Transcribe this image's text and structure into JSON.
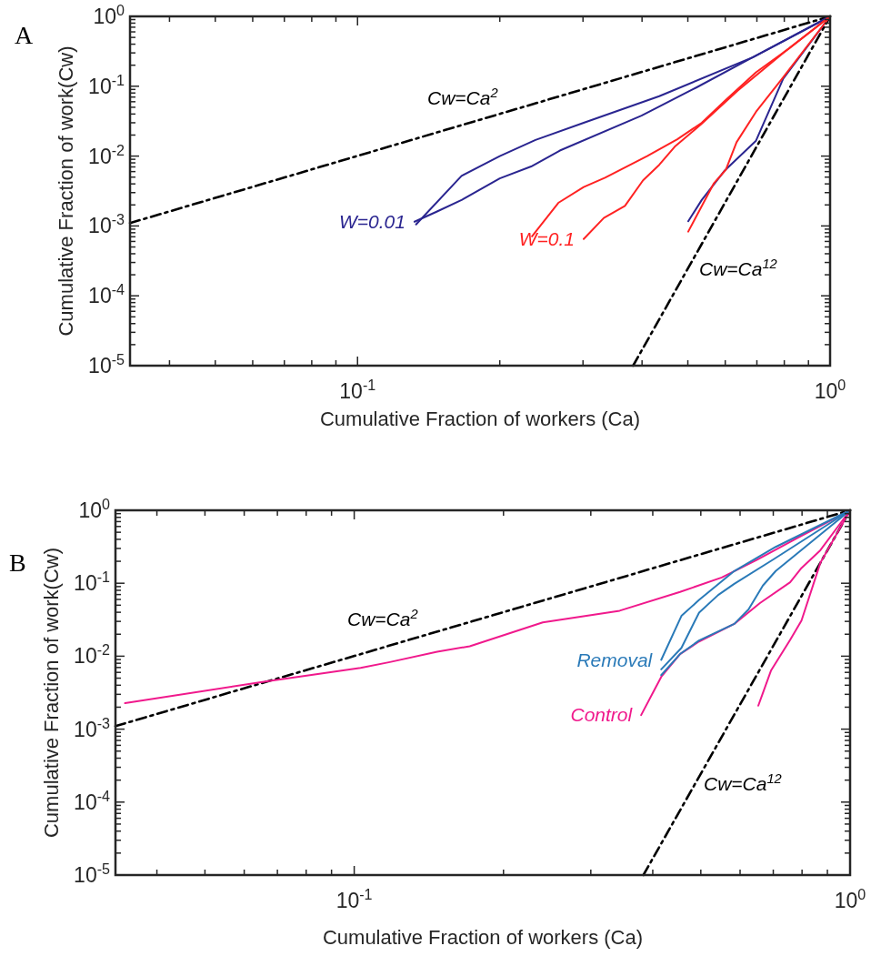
{
  "chart_data": [
    {
      "type": "line",
      "title": "A",
      "log": "xy",
      "xlabel": "Cumulative Fraction of workers (Ca)",
      "ylabel": "Cumulative Fraction of work(Cw)",
      "xlim": [
        0.033,
        1
      ],
      "ylim": [
        1e-05,
        1
      ],
      "xticks": [
        {
          "value": 0.04,
          "label": null
        },
        {
          "value": 0.05,
          "label": null
        },
        {
          "value": 0.06,
          "label": null
        },
        {
          "value": 0.07,
          "label": null
        },
        {
          "value": 0.08,
          "label": null
        },
        {
          "value": 0.09,
          "label": null
        },
        {
          "value": 0.1,
          "label": "10$^{-1}$"
        },
        {
          "value": 0.2,
          "label": null
        },
        {
          "value": 0.3,
          "label": null
        },
        {
          "value": 0.4,
          "label": null
        },
        {
          "value": 0.5,
          "label": null
        },
        {
          "value": 0.6,
          "label": null
        },
        {
          "value": 0.7,
          "label": null
        },
        {
          "value": 0.8,
          "label": null
        },
        {
          "value": 0.9,
          "label": null
        },
        {
          "value": 1,
          "label": "10$^{0}$"
        }
      ],
      "yticks": [
        {
          "value": 1e-05,
          "label": "10$^{-5}$"
        },
        {
          "value": 2e-05,
          "label": null
        },
        {
          "value": 3e-05,
          "label": null
        },
        {
          "value": 4e-05,
          "label": null
        },
        {
          "value": 5e-05,
          "label": null
        },
        {
          "value": 6e-05,
          "label": null
        },
        {
          "value": 7e-05,
          "label": null
        },
        {
          "value": 8e-05,
          "label": null
        },
        {
          "value": 9e-05,
          "label": null
        },
        {
          "value": 0.0001,
          "label": "10$^{-4}$"
        },
        {
          "value": 0.0002,
          "label": null
        },
        {
          "value": 0.0003,
          "label": null
        },
        {
          "value": 0.0004,
          "label": null
        },
        {
          "value": 0.0005,
          "label": null
        },
        {
          "value": 0.0006,
          "label": null
        },
        {
          "value": 0.0007,
          "label": null
        },
        {
          "value": 0.0008,
          "label": null
        },
        {
          "value": 0.0009,
          "label": null
        },
        {
          "value": 0.001,
          "label": "10$^{-3}$"
        },
        {
          "value": 0.002,
          "label": null
        },
        {
          "value": 0.003,
          "label": null
        },
        {
          "value": 0.004,
          "label": null
        },
        {
          "value": 0.005,
          "label": null
        },
        {
          "value": 0.006,
          "label": null
        },
        {
          "value": 0.007,
          "label": null
        },
        {
          "value": 0.008,
          "label": null
        },
        {
          "value": 0.009,
          "label": null
        },
        {
          "value": 0.01,
          "label": "10$^{-2}$"
        },
        {
          "value": 0.02,
          "label": null
        },
        {
          "value": 0.03,
          "label": null
        },
        {
          "value": 0.04,
          "label": null
        },
        {
          "value": 0.05,
          "label": null
        },
        {
          "value": 0.06,
          "label": null
        },
        {
          "value": 0.07,
          "label": null
        },
        {
          "value": 0.08,
          "label": null
        },
        {
          "value": 0.09,
          "label": null
        },
        {
          "value": 0.1,
          "label": "10$^{-1}$"
        },
        {
          "value": 0.2,
          "label": null
        },
        {
          "value": 0.3,
          "label": null
        },
        {
          "value": 0.4,
          "label": null
        },
        {
          "value": 0.5,
          "label": null
        },
        {
          "value": 0.6,
          "label": null
        },
        {
          "value": 0.7,
          "label": null
        },
        {
          "value": 0.8,
          "label": null
        },
        {
          "value": 0.9,
          "label": null
        },
        {
          "value": 1,
          "label": "10$^{0}$"
        }
      ],
      "series": [
        {
          "color": "#000000",
          "line_style": "dashed",
          "x": [
            0.033,
            1
          ],
          "values": [
            0.0011,
            1
          ]
        },
        {
          "color": "#000000",
          "line_style": "dashed",
          "x": [
            0.383,
            1
          ],
          "values": [
            1e-05,
            1
          ]
        },
        {
          "color": "#2a2590",
          "x": [
            0.133,
            0.166,
            0.2,
            0.238,
            0.301,
            0.435,
            0.687,
            1
          ],
          "values": [
            0.00105,
            0.0052,
            0.01,
            0.017,
            0.03,
            0.072,
            0.26,
            1
          ]
        },
        {
          "name": "W=0.01",
          "color": "#2a2590",
          "x": [
            0.132,
            0.147,
            0.166,
            0.2,
            0.233,
            0.268,
            0.399,
            0.52,
            0.667,
            1
          ],
          "values": [
            0.00115,
            0.0016,
            0.00235,
            0.0048,
            0.0071,
            0.012,
            0.038,
            0.095,
            0.235,
            1
          ]
        },
        {
          "color": "#2a2590",
          "x": [
            0.501,
            0.535,
            0.597,
            0.697,
            0.796,
            1
          ],
          "values": [
            0.00117,
            0.00235,
            0.0061,
            0.0166,
            0.129,
            1
          ]
        },
        {
          "color": "#ff2222",
          "x": [
            0.234,
            0.266,
            0.301,
            0.334,
            0.41,
            0.475,
            0.535,
            0.602,
            0.697,
            0.82,
            1
          ],
          "values": [
            0.00071,
            0.00214,
            0.0036,
            0.0049,
            0.01,
            0.0174,
            0.03,
            0.064,
            0.158,
            0.35,
            1
          ]
        },
        {
          "name": "W=0.1",
          "color": "#ff2222",
          "x": [
            0.301,
            0.332,
            0.368,
            0.402,
            0.435,
            0.469,
            0.535,
            0.638,
            0.796,
            1
          ],
          "values": [
            0.00065,
            0.0013,
            0.00194,
            0.0045,
            0.0075,
            0.0136,
            0.029,
            0.087,
            0.3,
            1
          ]
        },
        {
          "color": "#ff2222",
          "x": [
            0.501,
            0.568,
            0.602,
            0.634,
            0.697,
            0.796,
            1
          ],
          "values": [
            0.00083,
            0.0041,
            0.0064,
            0.0158,
            0.043,
            0.135,
            1
          ]
        }
      ],
      "annotations": [
        "Cw=Ca$^{2}$",
        "Cw=Ca$^{12}$"
      ]
    },
    {
      "type": "line",
      "title": "B",
      "log": "xy",
      "xlabel": "Cumulative Fraction of workers (Ca)",
      "ylabel": "Cumulative Fraction of work(Cw)",
      "xlim": [
        0.033,
        1
      ],
      "ylim": [
        1e-05,
        1
      ],
      "xticks": [
        {
          "value": 0.04,
          "label": null
        },
        {
          "value": 0.05,
          "label": null
        },
        {
          "value": 0.06,
          "label": null
        },
        {
          "value": 0.07,
          "label": null
        },
        {
          "value": 0.08,
          "label": null
        },
        {
          "value": 0.09,
          "label": null
        },
        {
          "value": 0.1,
          "label": "10$^{-1}$"
        },
        {
          "value": 0.2,
          "label": null
        },
        {
          "value": 0.3,
          "label": null
        },
        {
          "value": 0.4,
          "label": null
        },
        {
          "value": 0.5,
          "label": null
        },
        {
          "value": 0.6,
          "label": null
        },
        {
          "value": 0.7,
          "label": null
        },
        {
          "value": 0.8,
          "label": null
        },
        {
          "value": 0.9,
          "label": null
        },
        {
          "value": 1,
          "label": "10$^{0}$"
        }
      ],
      "yticks": [
        {
          "value": 1e-05,
          "label": "10$^{-5}$"
        },
        {
          "value": 2e-05,
          "label": null
        },
        {
          "value": 3e-05,
          "label": null
        },
        {
          "value": 4e-05,
          "label": null
        },
        {
          "value": 5e-05,
          "label": null
        },
        {
          "value": 6e-05,
          "label": null
        },
        {
          "value": 7e-05,
          "label": null
        },
        {
          "value": 8e-05,
          "label": null
        },
        {
          "value": 9e-05,
          "label": null
        },
        {
          "value": 0.0001,
          "label": "10$^{-4}$"
        },
        {
          "value": 0.0002,
          "label": null
        },
        {
          "value": 0.0003,
          "label": null
        },
        {
          "value": 0.0004,
          "label": null
        },
        {
          "value": 0.0005,
          "label": null
        },
        {
          "value": 0.0006,
          "label": null
        },
        {
          "value": 0.0007,
          "label": null
        },
        {
          "value": 0.0008,
          "label": null
        },
        {
          "value": 0.0009,
          "label": null
        },
        {
          "value": 0.001,
          "label": "10$^{-3}$"
        },
        {
          "value": 0.002,
          "label": null
        },
        {
          "value": 0.003,
          "label": null
        },
        {
          "value": 0.004,
          "label": null
        },
        {
          "value": 0.005,
          "label": null
        },
        {
          "value": 0.006,
          "label": null
        },
        {
          "value": 0.007,
          "label": null
        },
        {
          "value": 0.008,
          "label": null
        },
        {
          "value": 0.009,
          "label": null
        },
        {
          "value": 0.01,
          "label": "10$^{-2}$"
        },
        {
          "value": 0.02,
          "label": null
        },
        {
          "value": 0.03,
          "label": null
        },
        {
          "value": 0.04,
          "label": null
        },
        {
          "value": 0.05,
          "label": null
        },
        {
          "value": 0.06,
          "label": null
        },
        {
          "value": 0.07,
          "label": null
        },
        {
          "value": 0.08,
          "label": null
        },
        {
          "value": 0.09,
          "label": null
        },
        {
          "value": 0.1,
          "label": "10$^{-1}$"
        },
        {
          "value": 0.2,
          "label": null
        },
        {
          "value": 0.3,
          "label": null
        },
        {
          "value": 0.4,
          "label": null
        },
        {
          "value": 0.5,
          "label": null
        },
        {
          "value": 0.6,
          "label": null
        },
        {
          "value": 0.7,
          "label": null
        },
        {
          "value": 0.8,
          "label": null
        },
        {
          "value": 0.9,
          "label": null
        },
        {
          "value": 1,
          "label": "10$^{0}$"
        }
      ],
      "series": [
        {
          "color": "#000000",
          "line_style": "dashed",
          "x": [
            0.033,
            1
          ],
          "values": [
            0.0011,
            1
          ]
        },
        {
          "color": "#000000",
          "line_style": "dashed",
          "x": [
            0.383,
            1
          ],
          "values": [
            1e-05,
            1
          ]
        },
        {
          "color": "#f0198c",
          "x": [
            0.0345,
            0.0648,
            0.103,
            0.118,
            0.147,
            0.171,
            0.24,
            0.343,
            0.454,
            0.551,
            0.648,
            0.785,
            1
          ],
          "values": [
            0.00227,
            0.0044,
            0.0069,
            0.0083,
            0.0115,
            0.0137,
            0.029,
            0.042,
            0.076,
            0.12,
            0.209,
            0.42,
            1
          ]
        },
        {
          "name": "Control",
          "color": "#f0198c",
          "x": [
            0.379,
            0.416,
            0.454,
            0.496,
            0.584,
            0.658,
            0.757,
            0.798,
            0.871,
            1
          ],
          "values": [
            0.00156,
            0.0052,
            0.0107,
            0.0159,
            0.0277,
            0.0535,
            0.103,
            0.162,
            0.283,
            1
          ]
        },
        {
          "color": "#f0198c",
          "x": [
            0.653,
            0.693,
            0.757,
            0.798,
            0.871,
            1
          ],
          "values": [
            0.0021,
            0.0064,
            0.0167,
            0.0308,
            0.19,
            1
          ]
        },
        {
          "name": "Removal",
          "color": "#2a7ab8",
          "x": [
            0.416,
            0.457,
            0.496,
            0.584,
            0.708,
            1
          ],
          "values": [
            0.0089,
            0.0357,
            0.059,
            0.147,
            0.315,
            1
          ]
        },
        {
          "color": "#2a7ab8",
          "x": [
            0.416,
            0.457,
            0.496,
            0.542,
            0.584,
            0.698,
            1
          ],
          "values": [
            0.0066,
            0.013,
            0.0396,
            0.069,
            0.098,
            0.209,
            1
          ]
        },
        {
          "color": "#2a7ab8",
          "x": [
            0.416,
            0.454,
            0.496,
            0.584,
            0.624,
            0.667,
            0.708,
            1
          ],
          "values": [
            0.0055,
            0.0107,
            0.0164,
            0.0277,
            0.0437,
            0.093,
            0.147,
            1
          ]
        }
      ],
      "annotations": [
        "Cw=Ca$^{2}$",
        "Cw=Ca$^{12}$"
      ]
    }
  ]
}
